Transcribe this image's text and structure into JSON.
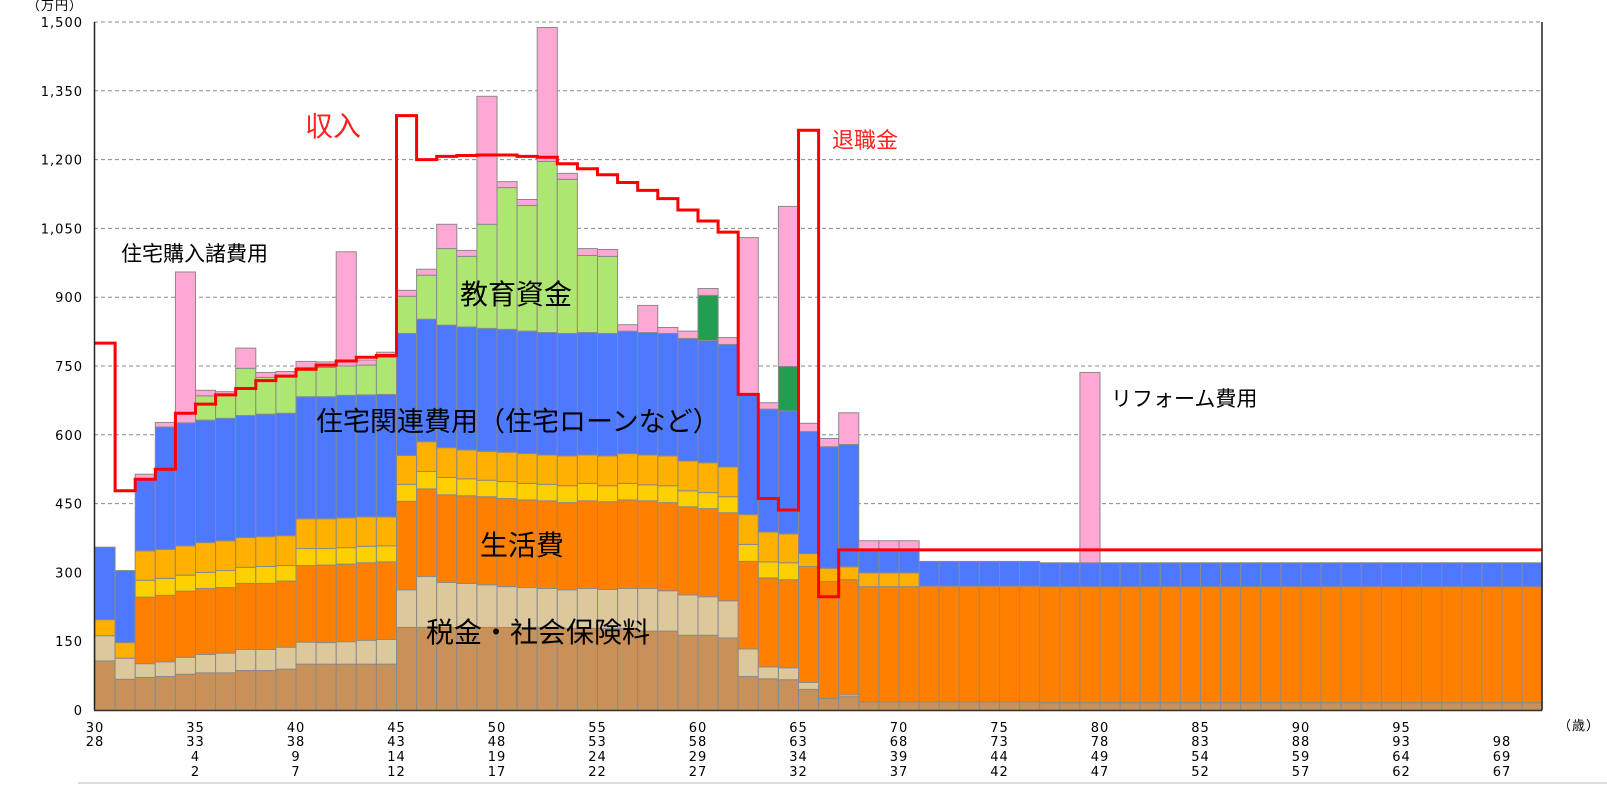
{
  "chart_data": {
    "type": "bar",
    "stacked": true,
    "y_unit_label": "（万円）",
    "x_unit_label": "（歳）",
    "ylim": [
      0,
      1500
    ],
    "y_ticks": [
      0,
      150,
      300,
      450,
      600,
      750,
      900,
      1050,
      1200,
      1350,
      1500
    ],
    "y_tick_labels": [
      "0",
      "150",
      "300",
      "450",
      "600",
      "750",
      "900",
      "1,050",
      "1,200",
      "1,350",
      "1,500"
    ],
    "grid": "horizontal dashed",
    "x": [
      30,
      31,
      32,
      33,
      34,
      35,
      36,
      37,
      38,
      39,
      40,
      41,
      42,
      43,
      44,
      45,
      46,
      47,
      48,
      49,
      50,
      51,
      52,
      53,
      54,
      55,
      56,
      57,
      58,
      59,
      60,
      61,
      62,
      63,
      64,
      65,
      66,
      67,
      68,
      69,
      70,
      71,
      72,
      73,
      74,
      75,
      76,
      77,
      78,
      79,
      80,
      81,
      82,
      83,
      84,
      85,
      86,
      87,
      88,
      89,
      90,
      91,
      92,
      93,
      94,
      95,
      96,
      97,
      98,
      99,
      100,
      101
    ],
    "x_tick_rows": [
      [
        "30",
        "35",
        "40",
        "45",
        "50",
        "55",
        "60",
        "65",
        "70",
        "75",
        "80",
        "85",
        "90",
        "95",
        ""
      ],
      [
        "28",
        "33",
        "38",
        "43",
        "48",
        "53",
        "58",
        "63",
        "68",
        "73",
        "78",
        "83",
        "88",
        "93",
        "98"
      ],
      [
        "",
        "4",
        "9",
        "14",
        "19",
        "24",
        "29",
        "34",
        "39",
        "44",
        "49",
        "54",
        "59",
        "64",
        "69"
      ],
      [
        "",
        "2",
        "7",
        "12",
        "17",
        "22",
        "27",
        "32",
        "37",
        "42",
        "47",
        "52",
        "57",
        "62",
        "67"
      ]
    ],
    "series": [
      {
        "color": "#C8915A",
        "values": [
          107,
          67,
          71,
          73,
          78,
          81,
          81,
          86,
          86,
          89,
          100,
          100,
          100,
          100,
          100,
          180,
          180,
          180,
          180,
          180,
          180,
          180,
          180,
          178,
          178,
          178,
          178,
          172,
          172,
          163,
          163,
          157,
          73,
          68,
          66,
          45,
          25,
          29,
          18,
          18,
          18,
          18,
          18,
          18,
          18,
          18,
          18,
          16,
          16,
          16,
          16,
          16,
          16,
          16,
          16,
          16,
          16,
          16,
          16,
          16,
          16,
          16,
          16,
          16,
          16,
          16,
          16,
          16,
          16,
          16,
          16,
          16
        ]
      },
      {
        "color": "#DDC89C",
        "values": [
          55,
          46,
          30,
          32,
          37,
          40,
          43,
          46,
          46,
          48,
          48,
          47,
          49,
          52,
          54,
          82,
          111,
          98,
          96,
          93,
          89,
          87,
          85,
          84,
          87,
          85,
          87,
          93,
          88,
          88,
          84,
          81,
          60,
          26,
          26,
          15,
          0,
          4,
          0,
          0,
          0,
          0,
          0,
          0,
          0,
          0,
          0,
          0,
          0,
          0,
          0,
          0,
          0,
          0,
          0,
          0,
          0,
          0,
          0,
          0,
          0,
          0,
          0,
          0,
          0,
          0,
          0,
          0,
          0,
          0,
          0,
          0
        ]
      },
      {
        "color": "#FF8000",
        "values": [
          0,
          0,
          145,
          145,
          144,
          144,
          143,
          144,
          144,
          144,
          167,
          169,
          169,
          169,
          169,
          193,
          191,
          191,
          191,
          192,
          192,
          191,
          191,
          190,
          191,
          191,
          193,
          191,
          192,
          192,
          192,
          192,
          191,
          194,
          192,
          253,
          255,
          251,
          251,
          251,
          251,
          252,
          252,
          252,
          252,
          252,
          252,
          253,
          253,
          253,
          253,
          253,
          253,
          253,
          253,
          253,
          253,
          253,
          253,
          253,
          253,
          253,
          253,
          253,
          253,
          253,
          253,
          253,
          253,
          253,
          253,
          253
        ]
      },
      {
        "color": "#FFD000",
        "values": [
          0,
          0,
          37,
          37,
          35,
          35,
          37,
          35,
          37,
          34,
          37,
          36,
          36,
          36,
          35,
          37,
          38,
          38,
          37,
          36,
          37,
          36,
          36,
          37,
          38,
          35,
          36,
          35,
          37,
          35,
          35,
          35,
          37,
          35,
          37,
          0,
          0,
          0,
          0,
          0,
          0,
          0,
          0,
          0,
          0,
          0,
          0,
          0,
          0,
          0,
          0,
          0,
          0,
          0,
          0,
          0,
          0,
          0,
          0,
          0,
          0,
          0,
          0,
          0,
          0,
          0,
          0,
          0,
          0,
          0,
          0,
          0
        ]
      },
      {
        "color": "#FFB000",
        "values": [
          35,
          34,
          64,
          63,
          64,
          65,
          65,
          65,
          65,
          65,
          65,
          65,
          65,
          64,
          63,
          63,
          65,
          65,
          63,
          63,
          64,
          65,
          64,
          65,
          62,
          65,
          65,
          65,
          65,
          65,
          65,
          65,
          65,
          65,
          63,
          28,
          29,
          28,
          30,
          30,
          30,
          0,
          0,
          0,
          0,
          0,
          0,
          0,
          0,
          0,
          0,
          0,
          0,
          0,
          0,
          0,
          0,
          0,
          0,
          0,
          0,
          0,
          0,
          0,
          0,
          0,
          0,
          0,
          0,
          0,
          0,
          0
        ]
      },
      {
        "color": "#4D79FF",
        "values": [
          158,
          157,
          155,
          267,
          268,
          267,
          267,
          266,
          267,
          267,
          266,
          266,
          267,
          266,
          267,
          266,
          267,
          267,
          268,
          268,
          268,
          267,
          267,
          267,
          267,
          267,
          267,
          267,
          267,
          267,
          267,
          267,
          261,
          268,
          268,
          266,
          265,
          267,
          48,
          48,
          48,
          54,
          54,
          54,
          54,
          54,
          54,
          52,
          52,
          52,
          52,
          52,
          52,
          52,
          52,
          52,
          52,
          52,
          52,
          52,
          52,
          52,
          52,
          52,
          52,
          52,
          52,
          52,
          52,
          52,
          52,
          52
        ]
      },
      {
        "color": "#AEE672",
        "values": [
          0,
          0,
          0,
          0,
          0,
          53,
          51,
          103,
          80,
          80,
          64,
          64,
          64,
          65,
          81,
          81,
          96,
          167,
          154,
          227,
          309,
          274,
          373,
          336,
          168,
          168,
          0,
          0,
          0,
          0,
          0,
          0,
          0,
          0,
          0,
          0,
          0,
          0,
          0,
          0,
          0,
          0,
          0,
          0,
          0,
          0,
          0,
          0,
          0,
          0,
          0,
          0,
          0,
          0,
          0,
          0,
          0,
          0,
          0,
          0,
          0,
          0,
          0,
          0,
          0,
          0,
          0,
          0,
          0,
          0,
          0,
          0
        ]
      },
      {
        "color": "#229E52",
        "values": [
          0,
          0,
          0,
          0,
          0,
          0,
          0,
          0,
          0,
          0,
          0,
          0,
          0,
          0,
          0,
          0,
          0,
          0,
          0,
          0,
          0,
          0,
          0,
          0,
          0,
          0,
          0,
          0,
          0,
          0,
          98,
          0,
          0,
          0,
          97,
          0,
          0,
          0,
          0,
          0,
          0,
          0,
          0,
          0,
          0,
          0,
          0,
          0,
          0,
          0,
          0,
          0,
          0,
          0,
          0,
          0,
          0,
          0,
          0,
          0,
          0,
          0,
          0,
          0,
          0,
          0,
          0,
          0,
          0,
          0,
          0,
          0
        ]
      },
      {
        "color": "#FFA8D4",
        "values": [
          0,
          0,
          12,
          10,
          329,
          12,
          7,
          44,
          11,
          11,
          13,
          12,
          249,
          11,
          11,
          13,
          13,
          53,
          13,
          279,
          13,
          13,
          292,
          13,
          15,
          15,
          14,
          59,
          13,
          16,
          15,
          15,
          343,
          14,
          349,
          18,
          18,
          69,
          22,
          22,
          22,
          0,
          0,
          0,
          0,
          0,
          0,
          0,
          0,
          415,
          0,
          0,
          0,
          0,
          0,
          0,
          0,
          0,
          0,
          0,
          0,
          0,
          0,
          0,
          0,
          0,
          0,
          0,
          0,
          0,
          0,
          0
        ]
      }
    ],
    "income_line": {
      "type": "step",
      "color": "#FF0000",
      "values": [
        800,
        478,
        503,
        525,
        647,
        667,
        687,
        701,
        718,
        728,
        743,
        752,
        761,
        769,
        773,
        1296,
        1200,
        1207,
        1209,
        1210,
        1210,
        1207,
        1205,
        1191,
        1180,
        1167,
        1150,
        1133,
        1115,
        1090,
        1066,
        1042,
        688,
        461,
        436,
        1264,
        247,
        349,
        349,
        349,
        349,
        349,
        349,
        349,
        349,
        349,
        349,
        349,
        349,
        349,
        349,
        349,
        349,
        349,
        349,
        349,
        349,
        349,
        349,
        349,
        349,
        349,
        349,
        349,
        349,
        349,
        349,
        349,
        349,
        349,
        349,
        349
      ]
    },
    "annotations": {
      "income": "収入",
      "housing_purchase": "住宅購入諸費用",
      "education": "教育資金",
      "housing": "住宅関連費用（住宅ローンなど）",
      "living": "生活費",
      "tax": "税金・社会保険料",
      "retirement": "退職金",
      "reform": "リフォーム費用"
    }
  }
}
